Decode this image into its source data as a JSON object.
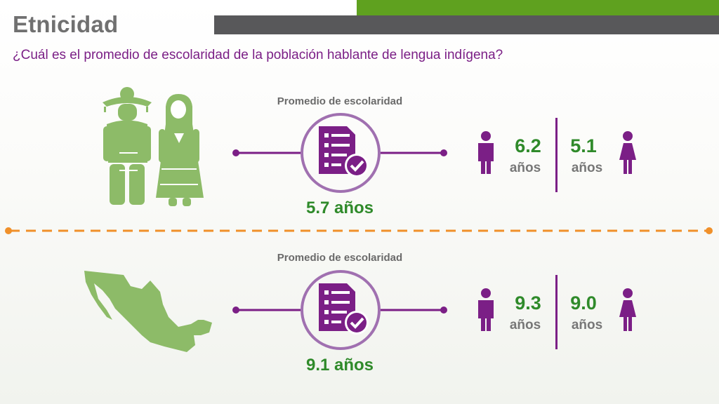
{
  "header": {
    "title": "Etnicidad",
    "subtitle": "¿Cuál es el promedio de escolaridad de la población hablante de lengua indígena?"
  },
  "top": {
    "label": "Promedio de escolaridad",
    "average": "5.7 años",
    "male_value": "6.2",
    "male_unit": "años",
    "female_value": "5.1",
    "female_unit": "años"
  },
  "bottom": {
    "label": "Promedio de escolaridad",
    "average": "9.1 años",
    "male_value": "9.3",
    "male_unit": "años",
    "female_value": "9.0",
    "female_unit": "años"
  },
  "icons": {
    "indigenous_people": "indigenous-couple-icon",
    "mexico_map": "mexico-map-icon",
    "checklist": "checklist-icon",
    "male": "male-person-icon",
    "female": "female-person-icon"
  },
  "colors": {
    "green_bar": "#5fa11f",
    "gray_bar": "#58585a",
    "purple": "#7b1f86",
    "light_purple": "#a070b0",
    "green_text": "#2f8a2a",
    "illustration_green": "#8dbb68",
    "orange_divider": "#f0902a"
  }
}
